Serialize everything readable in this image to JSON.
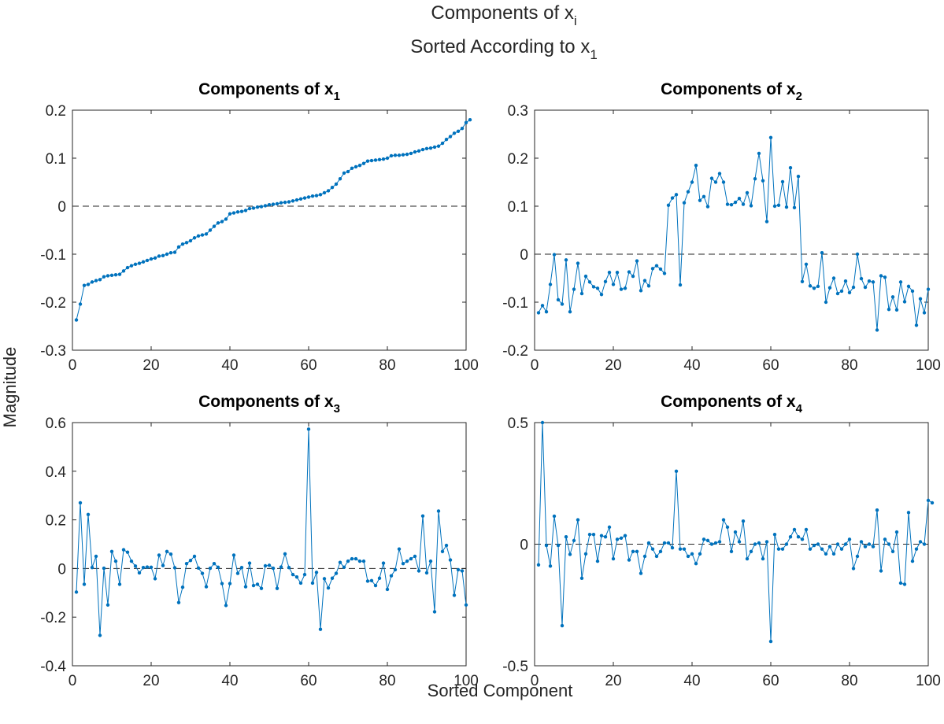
{
  "figure": {
    "title_line1_main": "Components of x",
    "title_line1_sub": "i",
    "title_line2_main": "Sorted According to x",
    "title_line2_sub": "1",
    "xlabel": "Sorted Component",
    "ylabel": "Magnitude",
    "line_color": "#0072BD",
    "zero_line_color": "#262626"
  },
  "chart_data": [
    {
      "type": "line",
      "title_main": "Components of x",
      "title_sub": "1",
      "xlim": [
        0,
        100
      ],
      "ylim": [
        -0.3,
        0.2
      ],
      "xticks": [
        "0",
        "20",
        "40",
        "60",
        "80",
        "100"
      ],
      "yticks": [
        "0.2",
        "0.1",
        "0",
        "-0.1",
        "-0.2",
        "-0.3"
      ],
      "grid": false,
      "reference_line_y": 0,
      "x_start": 1,
      "values": [
        -0.237,
        -0.204,
        -0.165,
        -0.163,
        -0.158,
        -0.155,
        -0.153,
        -0.147,
        -0.145,
        -0.144,
        -0.143,
        -0.142,
        -0.135,
        -0.128,
        -0.124,
        -0.121,
        -0.119,
        -0.116,
        -0.113,
        -0.11,
        -0.108,
        -0.104,
        -0.103,
        -0.1,
        -0.097,
        -0.096,
        -0.085,
        -0.079,
        -0.076,
        -0.072,
        -0.066,
        -0.062,
        -0.06,
        -0.058,
        -0.05,
        -0.042,
        -0.035,
        -0.032,
        -0.027,
        -0.016,
        -0.014,
        -0.012,
        -0.011,
        -0.009,
        -0.005,
        -0.004,
        -0.002,
        -0.001,
        0.001,
        0.003,
        0.004,
        0.005,
        0.007,
        0.008,
        0.009,
        0.011,
        0.013,
        0.015,
        0.017,
        0.019,
        0.021,
        0.022,
        0.024,
        0.028,
        0.032,
        0.039,
        0.046,
        0.057,
        0.069,
        0.072,
        0.079,
        0.082,
        0.085,
        0.089,
        0.094,
        0.095,
        0.096,
        0.097,
        0.098,
        0.1,
        0.105,
        0.106,
        0.106,
        0.107,
        0.108,
        0.11,
        0.113,
        0.115,
        0.118,
        0.12,
        0.121,
        0.123,
        0.125,
        0.131,
        0.139,
        0.145,
        0.152,
        0.156,
        0.162,
        0.174,
        0.18
      ]
    },
    {
      "type": "line",
      "title_main": "Components of x",
      "title_sub": "2",
      "xlim": [
        0,
        100
      ],
      "ylim": [
        -0.2,
        0.3
      ],
      "xticks": [
        "0",
        "20",
        "40",
        "60",
        "80",
        "100"
      ],
      "yticks": [
        "0.3",
        "0.2",
        "0.1",
        "0",
        "-0.1",
        "-0.2"
      ],
      "grid": false,
      "reference_line_y": 0,
      "x_start": 1,
      "values": [
        -0.122,
        -0.107,
        -0.12,
        -0.063,
        -0.001,
        -0.095,
        -0.104,
        -0.012,
        -0.12,
        -0.073,
        -0.019,
        -0.082,
        -0.046,
        -0.058,
        -0.068,
        -0.071,
        -0.084,
        -0.057,
        -0.038,
        -0.063,
        -0.038,
        -0.073,
        -0.071,
        -0.037,
        -0.046,
        -0.014,
        -0.076,
        -0.055,
        -0.066,
        -0.03,
        -0.024,
        -0.031,
        -0.04,
        0.102,
        0.117,
        0.124,
        -0.064,
        0.107,
        0.13,
        0.15,
        0.185,
        0.112,
        0.12,
        0.099,
        0.158,
        0.15,
        0.168,
        0.15,
        0.104,
        0.103,
        0.108,
        0.116,
        0.104,
        0.128,
        0.101,
        0.157,
        0.21,
        0.153,
        0.068,
        0.243,
        0.1,
        0.102,
        0.151,
        0.098,
        0.18,
        0.097,
        0.162,
        -0.057,
        -0.021,
        -0.066,
        -0.071,
        -0.067,
        0.003,
        -0.1,
        -0.07,
        -0.05,
        -0.082,
        -0.077,
        -0.056,
        -0.08,
        -0.069,
        0.0,
        -0.051,
        -0.069,
        -0.056,
        -0.058,
        -0.158,
        -0.045,
        -0.048,
        -0.115,
        -0.089,
        -0.116,
        -0.058,
        -0.099,
        -0.067,
        -0.077,
        -0.148,
        -0.093,
        -0.122,
        -0.073
      ]
    },
    {
      "type": "line",
      "title_main": "Components of x",
      "title_sub": "3",
      "xlim": [
        0,
        100
      ],
      "ylim": [
        -0.4,
        0.6
      ],
      "xticks": [
        "0",
        "20",
        "40",
        "60",
        "80",
        "100"
      ],
      "yticks": [
        "0.6",
        "0.4",
        "0.2",
        "0",
        "-0.2",
        "-0.4"
      ],
      "grid": false,
      "reference_line_y": 0,
      "x_start": 1,
      "values": [
        -0.097,
        0.27,
        -0.065,
        0.222,
        0.004,
        0.05,
        -0.275,
        0.001,
        -0.15,
        0.07,
        0.03,
        -0.065,
        0.077,
        0.067,
        0.03,
        0.01,
        -0.018,
        0.004,
        0.006,
        0.005,
        -0.042,
        0.055,
        0.012,
        0.07,
        0.059,
        0.003,
        -0.14,
        -0.077,
        0.02,
        0.033,
        0.05,
        0.002,
        -0.02,
        -0.075,
        0.001,
        0.02,
        0.005,
        -0.062,
        -0.152,
        -0.062,
        0.055,
        -0.02,
        0.004,
        -0.075,
        0.022,
        -0.07,
        -0.065,
        -0.082,
        0.011,
        0.013,
        0.001,
        -0.082,
        0.006,
        0.06,
        0.004,
        -0.025,
        -0.035,
        -0.06,
        -0.025,
        0.573,
        -0.06,
        -0.016,
        -0.25,
        -0.042,
        -0.08,
        -0.04,
        -0.02,
        0.025,
        0.005,
        0.03,
        0.04,
        0.04,
        0.03,
        0.03,
        -0.052,
        -0.05,
        -0.07,
        -0.04,
        0.022,
        -0.086,
        -0.03,
        -0.005,
        0.08,
        0.02,
        0.03,
        0.04,
        0.05,
        -0.01,
        0.216,
        -0.018,
        0.03,
        -0.178,
        0.236,
        0.07,
        0.095,
        0.035,
        -0.11,
        -0.005,
        -0.01,
        -0.15
      ]
    },
    {
      "type": "line",
      "title_main": "Components of x",
      "title_sub": "4",
      "xlim": [
        0,
        100
      ],
      "ylim": [
        -0.5,
        0.5
      ],
      "xticks": [
        "0",
        "20",
        "40",
        "60",
        "80",
        "100"
      ],
      "yticks": [
        "0.5",
        "0",
        "-0.5"
      ],
      "grid": false,
      "reference_line_y": 0,
      "x_start": 1,
      "values": [
        -0.085,
        0.5,
        -0.005,
        -0.09,
        0.115,
        -0.005,
        -0.335,
        0.03,
        -0.042,
        0.015,
        0.1,
        -0.14,
        -0.04,
        0.04,
        0.04,
        -0.07,
        0.035,
        0.03,
        0.07,
        -0.06,
        0.02,
        0.025,
        0.035,
        -0.065,
        -0.03,
        -0.03,
        -0.12,
        -0.05,
        0.005,
        -0.02,
        -0.05,
        -0.03,
        0.005,
        0.005,
        -0.015,
        0.3,
        -0.02,
        -0.02,
        -0.05,
        -0.04,
        -0.08,
        -0.04,
        0.02,
        0.015,
        0.0,
        0.005,
        0.01,
        0.1,
        0.07,
        -0.03,
        0.05,
        0.01,
        0.095,
        -0.06,
        -0.03,
        0.0,
        0.005,
        -0.06,
        0.01,
        -0.4,
        0.04,
        -0.02,
        -0.02,
        0.0,
        0.03,
        0.06,
        0.03,
        0.02,
        0.06,
        -0.02,
        -0.005,
        0.0,
        -0.02,
        -0.04,
        -0.01,
        -0.04,
        0.0,
        -0.02,
        0.0,
        0.02,
        -0.1,
        -0.05,
        0.01,
        -0.01,
        0.0,
        -0.01,
        0.14,
        -0.11,
        0.02,
        0.0,
        -0.03,
        0.05,
        -0.16,
        -0.165,
        0.13,
        -0.07,
        -0.02,
        0.01,
        0.0,
        0.18,
        0.17
      ]
    }
  ]
}
